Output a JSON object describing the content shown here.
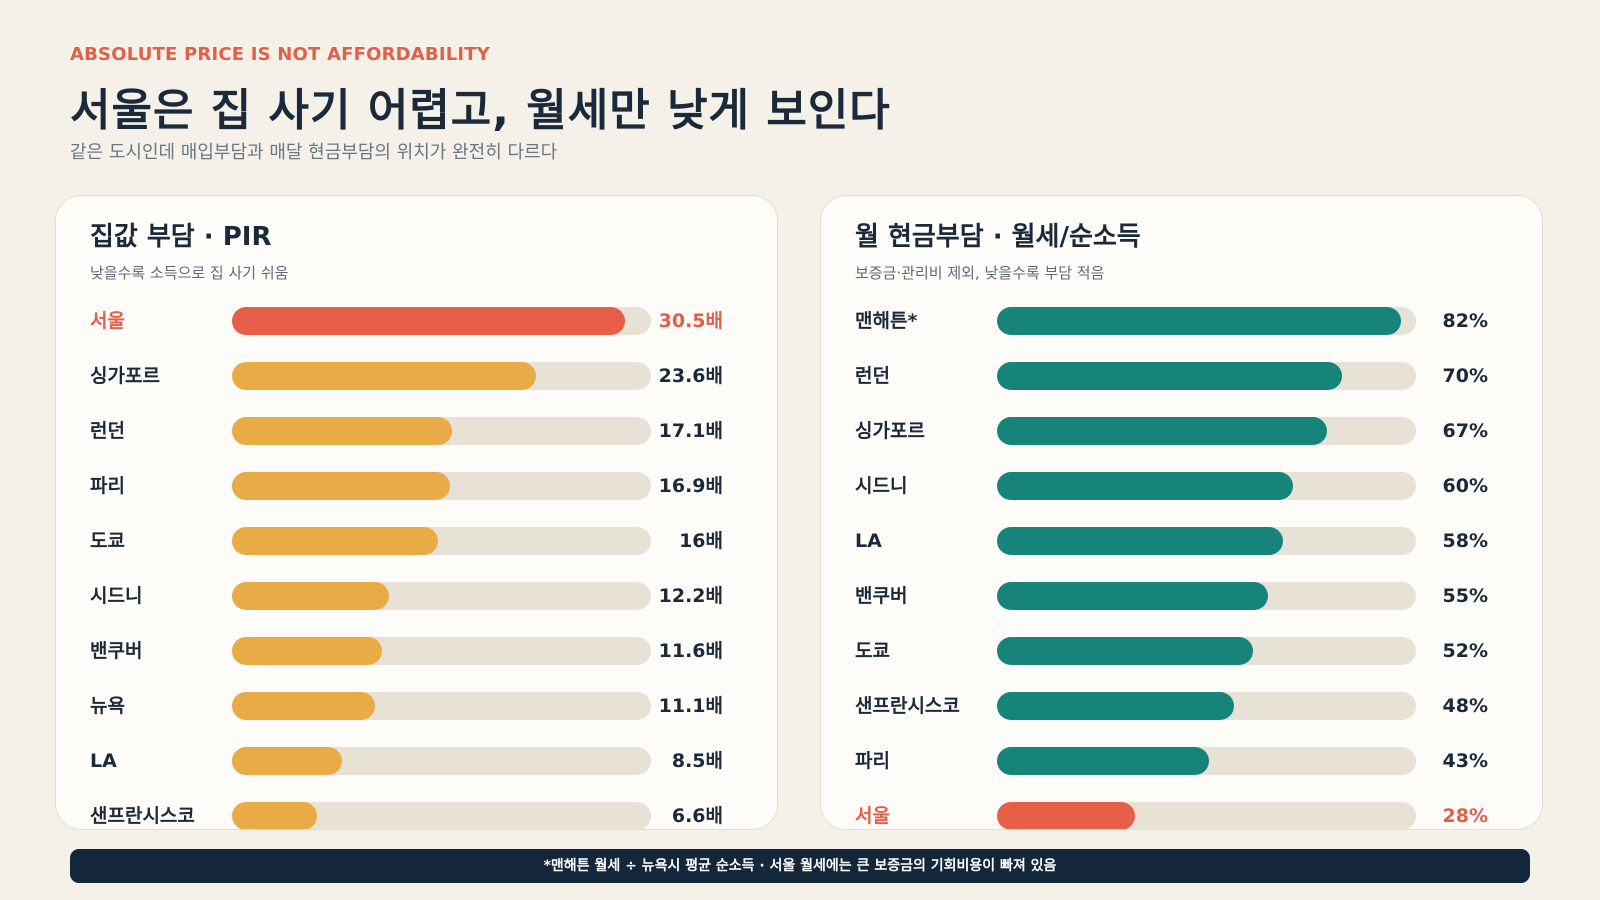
{
  "header": {
    "eyebrow": "ABSOLUTE PRICE IS NOT AFFORDABILITY",
    "title": "서울은 집 사기 어렵고, 월세만 낮게 보인다",
    "subtitle": "같은 도시인데 매입부담과 매달 현금부담의 위치가 완전히 다르다"
  },
  "colors": {
    "highlight": "#e85f47",
    "pir_bar": "#e8ab45",
    "rent_bar": "#17847c",
    "track": "#e8e1d6"
  },
  "chart_data": [
    {
      "type": "bar",
      "orientation": "horizontal",
      "title": "집값 부담 · PIR",
      "subtitle": "낮을수록 소득으로 집 사기 쉬움",
      "unit_suffix": "배",
      "xlim": [
        0,
        32.5
      ],
      "categories": [
        "서울",
        "싱가포르",
        "런던",
        "파리",
        "도쿄",
        "시드니",
        "밴쿠버",
        "뉴욕",
        "LA",
        "샌프란시스코"
      ],
      "values": [
        30.5,
        23.6,
        17.1,
        16.9,
        16,
        12.2,
        11.6,
        11.1,
        8.5,
        6.6
      ],
      "value_labels": [
        "30.5배",
        "23.6배",
        "17.1배",
        "16.9배",
        "16배",
        "12.2배",
        "11.6배",
        "11.1배",
        "8.5배",
        "6.6배"
      ],
      "highlight": [
        "서울"
      ]
    },
    {
      "type": "bar",
      "orientation": "horizontal",
      "title": "월 현금부담 · 월세/순소득",
      "subtitle": "보증금·관리비 제외, 낮을수록 부담 적음",
      "unit_suffix": "%",
      "xlim": [
        0,
        85
      ],
      "categories": [
        "맨해튼*",
        "런던",
        "싱가포르",
        "시드니",
        "LA",
        "밴쿠버",
        "도쿄",
        "샌프란시스코",
        "파리",
        "서울"
      ],
      "values": [
        82,
        70,
        67,
        60,
        58,
        55,
        52,
        48,
        43,
        28
      ],
      "value_labels": [
        "82%",
        "70%",
        "67%",
        "60%",
        "58%",
        "55%",
        "52%",
        "48%",
        "43%",
        "28%"
      ],
      "highlight": [
        "서울"
      ]
    }
  ],
  "footer": {
    "note": "*맨해튼 월세 ÷ 뉴욕시 평균 순소득 · 서울 월세에는 큰 보증금의 기회비용이 빠져 있음"
  }
}
